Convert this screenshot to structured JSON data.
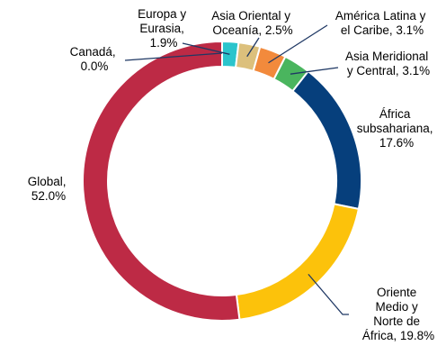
{
  "chart_data": {
    "type": "pie",
    "variant": "donut",
    "slices": [
      {
        "name": "Europa y Eurasia",
        "value": 1.9,
        "line1": "Europa y",
        "line2": "Eurasia,",
        "line3": "1.9%",
        "color": "#2bc4cc"
      },
      {
        "name": "Asia Oriental y Oceanía",
        "value": 2.5,
        "line1": "Asia Oriental y",
        "line2": "Oceanía, 2.5%",
        "color": "#dcc07c"
      },
      {
        "name": "América Latina y el Caribe",
        "value": 3.1,
        "line1": "América Latina y",
        "line2": "el Caribe, 3.1%",
        "color": "#f28a3c"
      },
      {
        "name": "Asia Meridional y Central",
        "value": 3.1,
        "line1": "Asia Meridional",
        "line2": "y Central, 3.1%",
        "color": "#4ab55e"
      },
      {
        "name": "África subsahariana",
        "value": 17.6,
        "line1": "África",
        "line2": "subsahariana,",
        "line3": "17.6%",
        "color": "#063f7c"
      },
      {
        "name": "Oriente Medio y Norte de África",
        "value": 19.8,
        "line1": "Oriente",
        "line2": "Medio y",
        "line3": "Norte de",
        "line4": "África, 19.8%",
        "color": "#fcc20b"
      },
      {
        "name": "Global",
        "value": 52.0,
        "line1": "Global,",
        "line2": "52.0%",
        "color": "#bd2a45"
      },
      {
        "name": "Canadá",
        "value": 0.0,
        "line1": "Canadá,",
        "line2": "0.0%",
        "color": "#1f4e79"
      }
    ],
    "slice_border_color": "#ffffff",
    "leader_line_color": "#1f3864"
  }
}
